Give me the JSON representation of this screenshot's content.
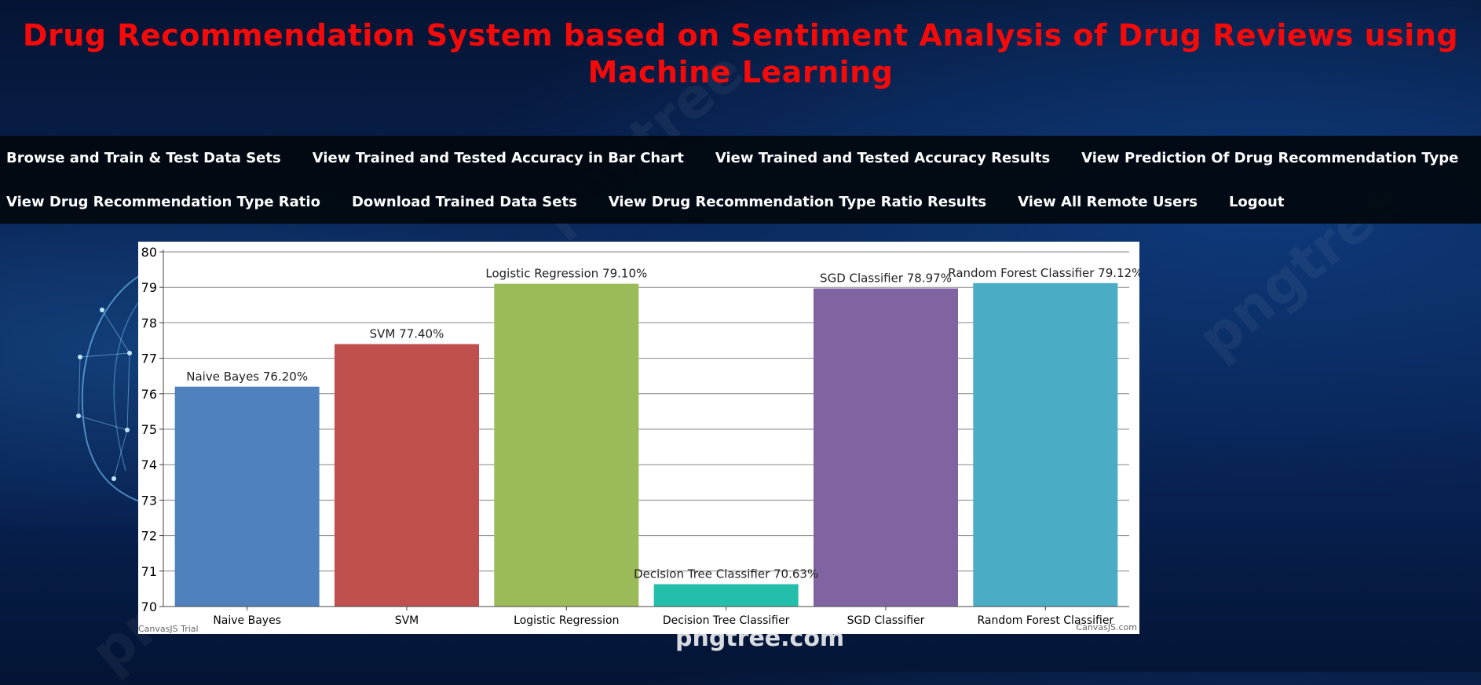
{
  "page": {
    "title": "Drug Recommendation System based on Sentiment Analysis of Drug Reviews using Machine Learning",
    "brand_watermark": "pngtree.com",
    "watermark_text": "pngtree"
  },
  "nav": {
    "row1": [
      "Browse and Train & Test Data Sets",
      "View Trained and Tested Accuracy in Bar Chart",
      "View Trained and Tested Accuracy Results",
      "View Prediction Of Drug Recommendation Type"
    ],
    "row2": [
      "View Drug Recommendation Type Ratio",
      "Download Trained Data Sets",
      "View Drug Recommendation Type Ratio Results",
      "View All Remote Users",
      "Logout"
    ]
  },
  "chart_data": {
    "type": "bar",
    "categories": [
      "Naive Bayes",
      "SVM",
      "Logistic Regression",
      "Decision Tree Classifier",
      "SGD Classifier",
      "Random Forest Classifier"
    ],
    "values": [
      76.2,
      77.4,
      79.1,
      70.63,
      78.97,
      79.12
    ],
    "data_labels": [
      "Naive Bayes 76.20%",
      "SVM 77.40%",
      "Logistic Regression 79.10%",
      "Decision Tree Classifier 70.63%",
      "SGD Classifier 78.97%",
      "Random Forest Classifier 79.12%"
    ],
    "colors": [
      "#4f81bc",
      "#c0504e",
      "#9bbb58",
      "#23bfaa",
      "#8064a1",
      "#4aacc5"
    ],
    "ylim": [
      70,
      80
    ],
    "yticks": [
      70,
      71,
      72,
      73,
      74,
      75,
      76,
      77,
      78,
      79,
      80
    ],
    "grid": true,
    "credit_left": "CanvasJS Trial",
    "credit_right": "CanvasJS.com"
  }
}
